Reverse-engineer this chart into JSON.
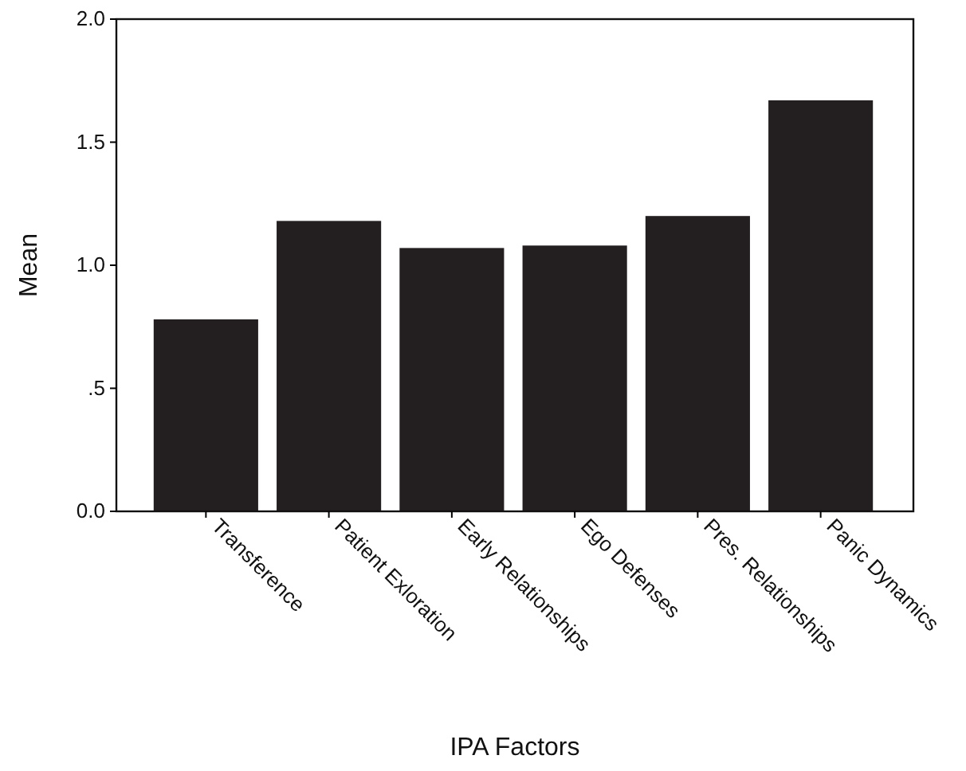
{
  "chart_data": {
    "type": "bar",
    "xlabel": "IPA Factors",
    "ylabel": "Mean",
    "categories": [
      "Transference",
      "Patient Exloration",
      "Early Relationships",
      "Ego Defenses",
      "Pres. Relationships",
      "Panic Dynamics"
    ],
    "values": [
      0.78,
      1.18,
      1.07,
      1.08,
      1.2,
      1.67
    ],
    "color": "#231f20",
    "ylim": [
      0,
      2
    ],
    "yticks": [
      {
        "value": 0,
        "label": "0.0"
      },
      {
        "value": 0.5,
        "label": ".5"
      },
      {
        "value": 1,
        "label": "1.0"
      },
      {
        "value": 1.5,
        "label": "1.5"
      },
      {
        "value": 2,
        "label": "2.0"
      }
    ],
    "grid": false
  }
}
